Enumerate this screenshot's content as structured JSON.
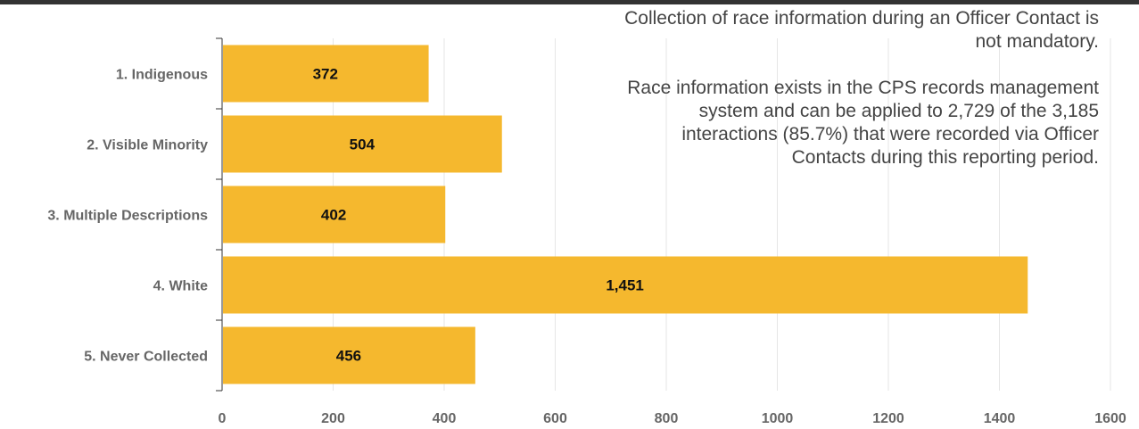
{
  "chart_data": {
    "type": "bar",
    "orientation": "horizontal",
    "categories": [
      "1. Indigenous",
      "2. Visible Minority",
      "3. Multiple Descriptions",
      "4. White",
      "5. Never Collected"
    ],
    "values": [
      372,
      504,
      402,
      1451,
      456
    ],
    "value_labels": [
      "372",
      "504",
      "402",
      "1,451",
      "456"
    ],
    "xlim": [
      0,
      1600
    ],
    "xticks": [
      0,
      200,
      400,
      600,
      800,
      1000,
      1200,
      1400,
      1600
    ],
    "grid": "vertical",
    "bar_color": "#F5B82E",
    "annotation": {
      "line1": "Collection of race information during an Officer Contact is not mandatory.",
      "line2": "Race information exists in the CPS records management system and can be applied to 2,729 of the 3,185 interactions  (85.7%) that were recorded via Officer Contacts during this reporting period."
    }
  }
}
